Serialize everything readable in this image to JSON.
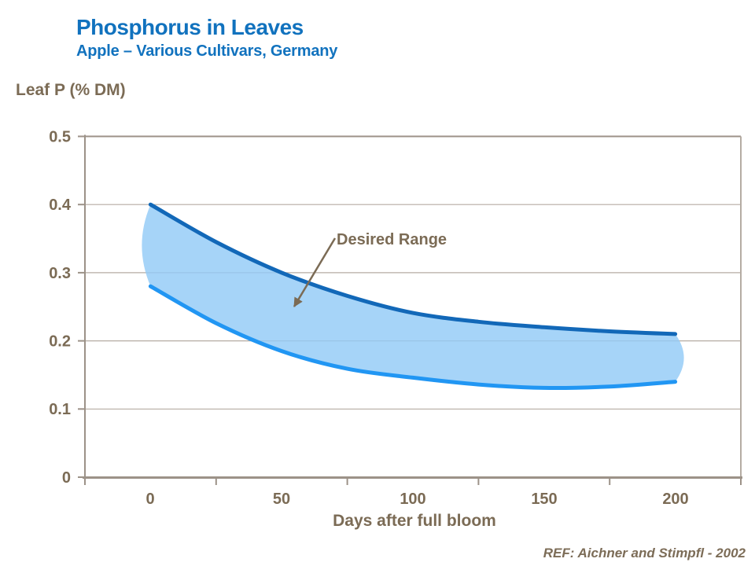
{
  "header": {
    "title": "Phosphorus in Leaves",
    "subtitle": "Apple – Various Cultivars, Germany"
  },
  "chart": {
    "y_axis_title": "Leaf P (% DM)",
    "x_axis_title": "Days after full bloom",
    "annotation": "Desired Range",
    "reference": "REF: Aichner and Stimpfl - 2002",
    "y_ticks": [
      "0.5",
      "0.4",
      "0.3",
      "0.2",
      "0.1",
      "0"
    ],
    "x_ticks": [
      "0",
      "50",
      "100",
      "150",
      "200"
    ]
  },
  "chart_data": {
    "type": "area",
    "title": "Phosphorus in Leaves",
    "subtitle": "Apple – Various Cultivars, Germany",
    "xlabel": "Days after full bloom",
    "ylabel": "Leaf P (% DM)",
    "band_label": "Desired Range",
    "x": [
      0,
      25,
      50,
      75,
      100,
      125,
      150,
      175,
      200
    ],
    "series": [
      {
        "name": "upper_limit",
        "values": [
          0.4,
          0.345,
          0.3,
          0.266,
          0.241,
          0.228,
          0.22,
          0.214,
          0.21
        ]
      },
      {
        "name": "lower_limit",
        "values": [
          0.28,
          0.226,
          0.185,
          0.159,
          0.146,
          0.136,
          0.131,
          0.133,
          0.14
        ]
      }
    ],
    "xlim": [
      -25,
      225
    ],
    "ylim": [
      0,
      0.5
    ],
    "x_tick_values": [
      0,
      50,
      100,
      150,
      200
    ],
    "y_tick_values": [
      0,
      0.1,
      0.2,
      0.3,
      0.4,
      0.5
    ],
    "grid": "horizontal",
    "legend": "none",
    "colors": {
      "band_fill": "#A9D6F8",
      "upper_line": "#1268B8",
      "lower_line": "#2196F3",
      "title_blue": "#1172BE",
      "text_brown": "#7B6B55",
      "gridline": "#B5ACA3",
      "axis": "#9C9288"
    }
  }
}
